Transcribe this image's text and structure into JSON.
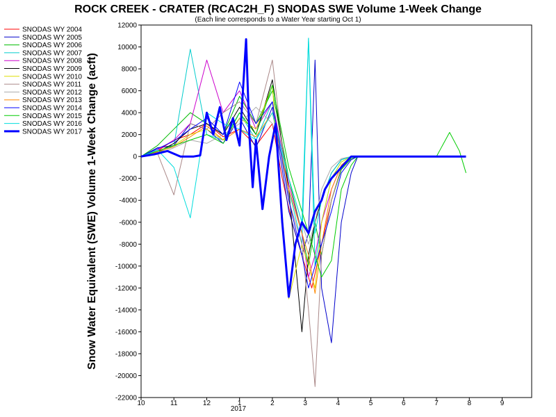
{
  "chart_data": {
    "type": "line",
    "title": "ROCK CREEK - CRATER (RCAC2H_F) SNODAS SWE Volume 1-Week Change",
    "subtitle": "(Each line corresponds to a Water Year starting Oct 1)",
    "ylabel": "Snow Water Equivalent (SWE) Volume 1-Week Change (acft)",
    "xlabel": "",
    "ylim": [
      -22000,
      12000
    ],
    "y_ticks": [
      12000,
      10000,
      8000,
      6000,
      4000,
      2000,
      0,
      -2000,
      -4000,
      -6000,
      -8000,
      -10000,
      -12000,
      -14000,
      -16000,
      -18000,
      -20000,
      -22000
    ],
    "x_ticks": [
      "10",
      "11",
      "12",
      "1",
      "2",
      "3",
      "4",
      "5",
      "6",
      "7",
      "8",
      "9"
    ],
    "x_year_label": "2017",
    "legend_position": "left",
    "grid": false,
    "series": [
      {
        "name": "SNODAS WY 2004",
        "color": "#ff0000",
        "x": [
          0,
          0.5,
          1,
          1.5,
          2,
          2.5,
          3,
          3.5,
          4,
          4.3,
          4.6,
          4.9,
          5.2,
          5.5,
          5.8,
          6.1,
          6.4,
          6.6,
          7,
          8,
          9,
          9.4,
          9.7,
          9.9
        ],
        "y": [
          0,
          500,
          1500,
          2000,
          3000,
          1800,
          2500,
          1000,
          3000,
          -2000,
          -6000,
          -9000,
          -12000,
          -8000,
          -4000,
          -1000,
          0,
          0,
          0,
          0,
          0,
          0,
          0,
          0
        ]
      },
      {
        "name": "SNODAS WY 2005",
        "color": "#0000cc",
        "x": [
          0,
          0.5,
          1,
          1.5,
          2,
          2.5,
          3,
          3.5,
          4,
          4.5,
          4.9,
          5.1,
          5.3,
          5.5,
          5.8,
          6.1,
          6.4,
          6.6,
          7,
          8,
          9,
          9.4,
          9.7,
          9.9
        ],
        "y": [
          0,
          800,
          1000,
          3000,
          2500,
          1200,
          3500,
          800,
          4500,
          -5000,
          -9000,
          -7000,
          8800,
          -12000,
          -17000,
          -6000,
          -1500,
          0,
          0,
          0,
          0,
          0,
          0,
          0
        ]
      },
      {
        "name": "SNODAS WY 2006",
        "color": "#00bb00",
        "x": [
          0,
          0.5,
          1,
          1.5,
          2,
          2.5,
          3,
          3.5,
          4,
          4.5,
          4.9,
          5.1,
          5.3,
          5.5,
          5.8,
          6.1,
          6.4,
          6.6,
          7,
          8,
          9,
          9.4,
          9.7,
          9.9
        ],
        "y": [
          0,
          1000,
          2500,
          4000,
          3000,
          2000,
          5500,
          3000,
          6000,
          -2000,
          -7000,
          -10000,
          -6000,
          -9000,
          -4000,
          -1200,
          -200,
          0,
          0,
          0,
          0,
          0,
          0,
          0
        ]
      },
      {
        "name": "SNODAS WY 2007",
        "color": "#00cccc",
        "x": [
          0,
          0.5,
          1,
          1.5,
          2,
          2.5,
          3,
          3.5,
          4,
          4.5,
          4.9,
          5.1,
          5.3,
          5.5,
          5.8,
          6.1,
          6.4,
          6.6,
          7,
          8,
          9,
          9.4,
          9.7,
          9.9
        ],
        "y": [
          0,
          300,
          1000,
          9800,
          2000,
          1500,
          4000,
          1500,
          5000,
          -3000,
          -8000,
          10800,
          -10000,
          -6000,
          -2000,
          -500,
          0,
          0,
          0,
          0,
          0,
          0,
          0,
          0
        ]
      },
      {
        "name": "SNODAS WY 2008",
        "color": "#cc00cc",
        "x": [
          0,
          0.5,
          1,
          1.5,
          2,
          2.5,
          3,
          3.5,
          4,
          4.5,
          4.9,
          5.1,
          5.3,
          5.5,
          5.8,
          6.1,
          6.4,
          6.6,
          7,
          8,
          9,
          9.4,
          9.7,
          9.9
        ],
        "y": [
          0,
          600,
          1500,
          3000,
          8800,
          4000,
          6000,
          2500,
          5000,
          -2500,
          -7000,
          -11000,
          -9000,
          -6000,
          -3000,
          -800,
          0,
          0,
          0,
          0,
          0,
          0,
          0,
          0
        ]
      },
      {
        "name": "SNODAS WY 2009",
        "color": "#000000",
        "x": [
          0,
          0.5,
          1,
          1.5,
          2,
          2.5,
          3,
          3.5,
          4,
          4.5,
          4.9,
          5.1,
          5.3,
          5.5,
          5.8,
          6.1,
          6.4,
          6.6,
          7,
          8,
          9,
          9.4,
          9.7,
          9.9
        ],
        "y": [
          0,
          400,
          1200,
          2500,
          3000,
          2000,
          4500,
          2000,
          7000,
          -3000,
          -16000,
          -9000,
          -6000,
          -4000,
          -1500,
          -300,
          0,
          0,
          0,
          0,
          0,
          0,
          0,
          0
        ]
      },
      {
        "name": "SNODAS WY 2010",
        "color": "#dddd00",
        "x": [
          0,
          0.5,
          1,
          1.5,
          2,
          2.5,
          3,
          3.5,
          4,
          4.5,
          4.9,
          5.1,
          5.3,
          5.5,
          5.8,
          6.1,
          6.4,
          6.6,
          7,
          8,
          9,
          9.4,
          9.7,
          9.9
        ],
        "y": [
          0,
          500,
          1000,
          2000,
          2500,
          1500,
          3500,
          2500,
          6500,
          -13000,
          -8000,
          -10000,
          -12000,
          -6000,
          -2000,
          -500,
          0,
          0,
          0,
          0,
          0,
          0,
          0,
          0
        ]
      },
      {
        "name": "SNODAS WY 2011",
        "color": "#aa8888",
        "x": [
          0,
          0.5,
          1,
          1.5,
          2,
          2.5,
          3,
          3.5,
          4,
          4.5,
          4.9,
          5.1,
          5.3,
          5.5,
          5.8,
          6.1,
          6.4,
          6.6,
          7,
          8,
          9,
          9.4,
          9.7,
          9.9
        ],
        "y": [
          0,
          300,
          -3500,
          3000,
          2500,
          4000,
          5000,
          3000,
          8800,
          -4000,
          -8000,
          -14000,
          -21000,
          -9000,
          -4000,
          -1000,
          0,
          0,
          0,
          0,
          0,
          0,
          0,
          0
        ]
      },
      {
        "name": "SNODAS WY 2012",
        "color": "#aaaaaa",
        "x": [
          0,
          0.5,
          1,
          1.5,
          2,
          2.5,
          3,
          3.5,
          4,
          4.5,
          4.9,
          5.1,
          5.3,
          5.5,
          5.8,
          6.1,
          6.4,
          6.6,
          7,
          8,
          9,
          9.4,
          9.7,
          9.9
        ],
        "y": [
          0,
          200,
          800,
          1500,
          1200,
          2000,
          3000,
          4500,
          3000,
          -2000,
          -6000,
          -8000,
          -6000,
          -3000,
          -1000,
          -200,
          0,
          0,
          0,
          0,
          0,
          0,
          0,
          0
        ]
      },
      {
        "name": "SNODAS WY 2013",
        "color": "#ff8800",
        "x": [
          0,
          0.5,
          1,
          1.5,
          2,
          2.5,
          3,
          3.5,
          4,
          4.5,
          4.9,
          5.1,
          5.3,
          5.5,
          5.8,
          6.1,
          6.4,
          6.6,
          7,
          8,
          9,
          9.4,
          9.7,
          9.9
        ],
        "y": [
          0,
          400,
          900,
          1800,
          2800,
          1500,
          2500,
          1800,
          4000,
          -3000,
          -7000,
          -9000,
          -12500,
          -8000,
          -3000,
          -800,
          0,
          0,
          0,
          0,
          0,
          0,
          0,
          0
        ]
      },
      {
        "name": "SNODAS WY 2014",
        "color": "#0000ff",
        "x": [
          0,
          0.5,
          1,
          1.5,
          2,
          2.5,
          3,
          3.5,
          4,
          4.5,
          4.9,
          5.1,
          5.3,
          5.5,
          5.8,
          6.1,
          6.4,
          6.6,
          7,
          8,
          9,
          9.4,
          9.7,
          9.9
        ],
        "y": [
          0,
          700,
          1400,
          2500,
          3500,
          2000,
          6800,
          3000,
          5000,
          -4000,
          -9000,
          -12000,
          -10000,
          -8000,
          -5000,
          -1500,
          -300,
          0,
          0,
          0,
          0,
          0,
          0,
          0
        ]
      },
      {
        "name": "SNODAS WY 2015",
        "color": "#00cc00",
        "x": [
          0,
          0.5,
          1,
          1.5,
          2,
          2.5,
          3,
          3.5,
          4,
          4.5,
          4.9,
          5.1,
          5.3,
          5.5,
          5.8,
          6.1,
          6.4,
          6.6,
          7,
          8,
          9,
          9.4,
          9.7,
          9.9
        ],
        "y": [
          0,
          500,
          1000,
          1500,
          2000,
          1200,
          4000,
          2000,
          6500,
          -1000,
          -5000,
          -7000,
          -9000,
          -11000,
          -9500,
          -3000,
          -800,
          0,
          0,
          0,
          0,
          2200,
          500,
          -1500
        ]
      },
      {
        "name": "SNODAS WY 2016",
        "color": "#00dddd",
        "x": [
          0,
          0.5,
          1,
          1.5,
          2,
          2.5,
          3,
          3.5,
          4,
          4.5,
          4.9,
          5.1,
          5.3,
          5.5,
          5.8,
          6.1,
          6.4,
          6.6,
          7,
          8,
          9,
          9.4,
          9.7,
          9.9
        ],
        "y": [
          0,
          600,
          -1000,
          -5600,
          4000,
          3000,
          2500,
          1500,
          4000,
          -2000,
          -6000,
          10800,
          -7000,
          -4000,
          -1500,
          -300,
          0,
          0,
          0,
          0,
          0,
          0,
          0,
          0
        ]
      },
      {
        "name": "SNODAS WY 2017",
        "color": "#0000ff",
        "bold": true,
        "x": [
          0,
          0.4,
          0.8,
          1.2,
          1.6,
          1.8,
          2.0,
          2.2,
          2.4,
          2.6,
          2.8,
          3.0,
          3.2,
          3.3,
          3.4,
          3.5,
          3.7,
          3.9,
          4.1,
          4.3,
          4.5,
          4.7,
          4.9,
          5.1,
          5.3,
          5.5,
          5.6,
          5.8,
          6.1,
          6.4,
          6.7,
          7,
          8,
          9,
          9.4,
          9.7,
          9.9
        ],
        "y": [
          0,
          200,
          500,
          0,
          0,
          100,
          4000,
          2000,
          4500,
          1500,
          3500,
          1000,
          10700,
          2000,
          -2800,
          1500,
          -4800,
          0,
          3000,
          -6000,
          -12800,
          -8000,
          -6000,
          -7000,
          -5000,
          -4000,
          -3000,
          -2000,
          -1000,
          0,
          0,
          0,
          0,
          0,
          0,
          0,
          0
        ]
      }
    ]
  }
}
